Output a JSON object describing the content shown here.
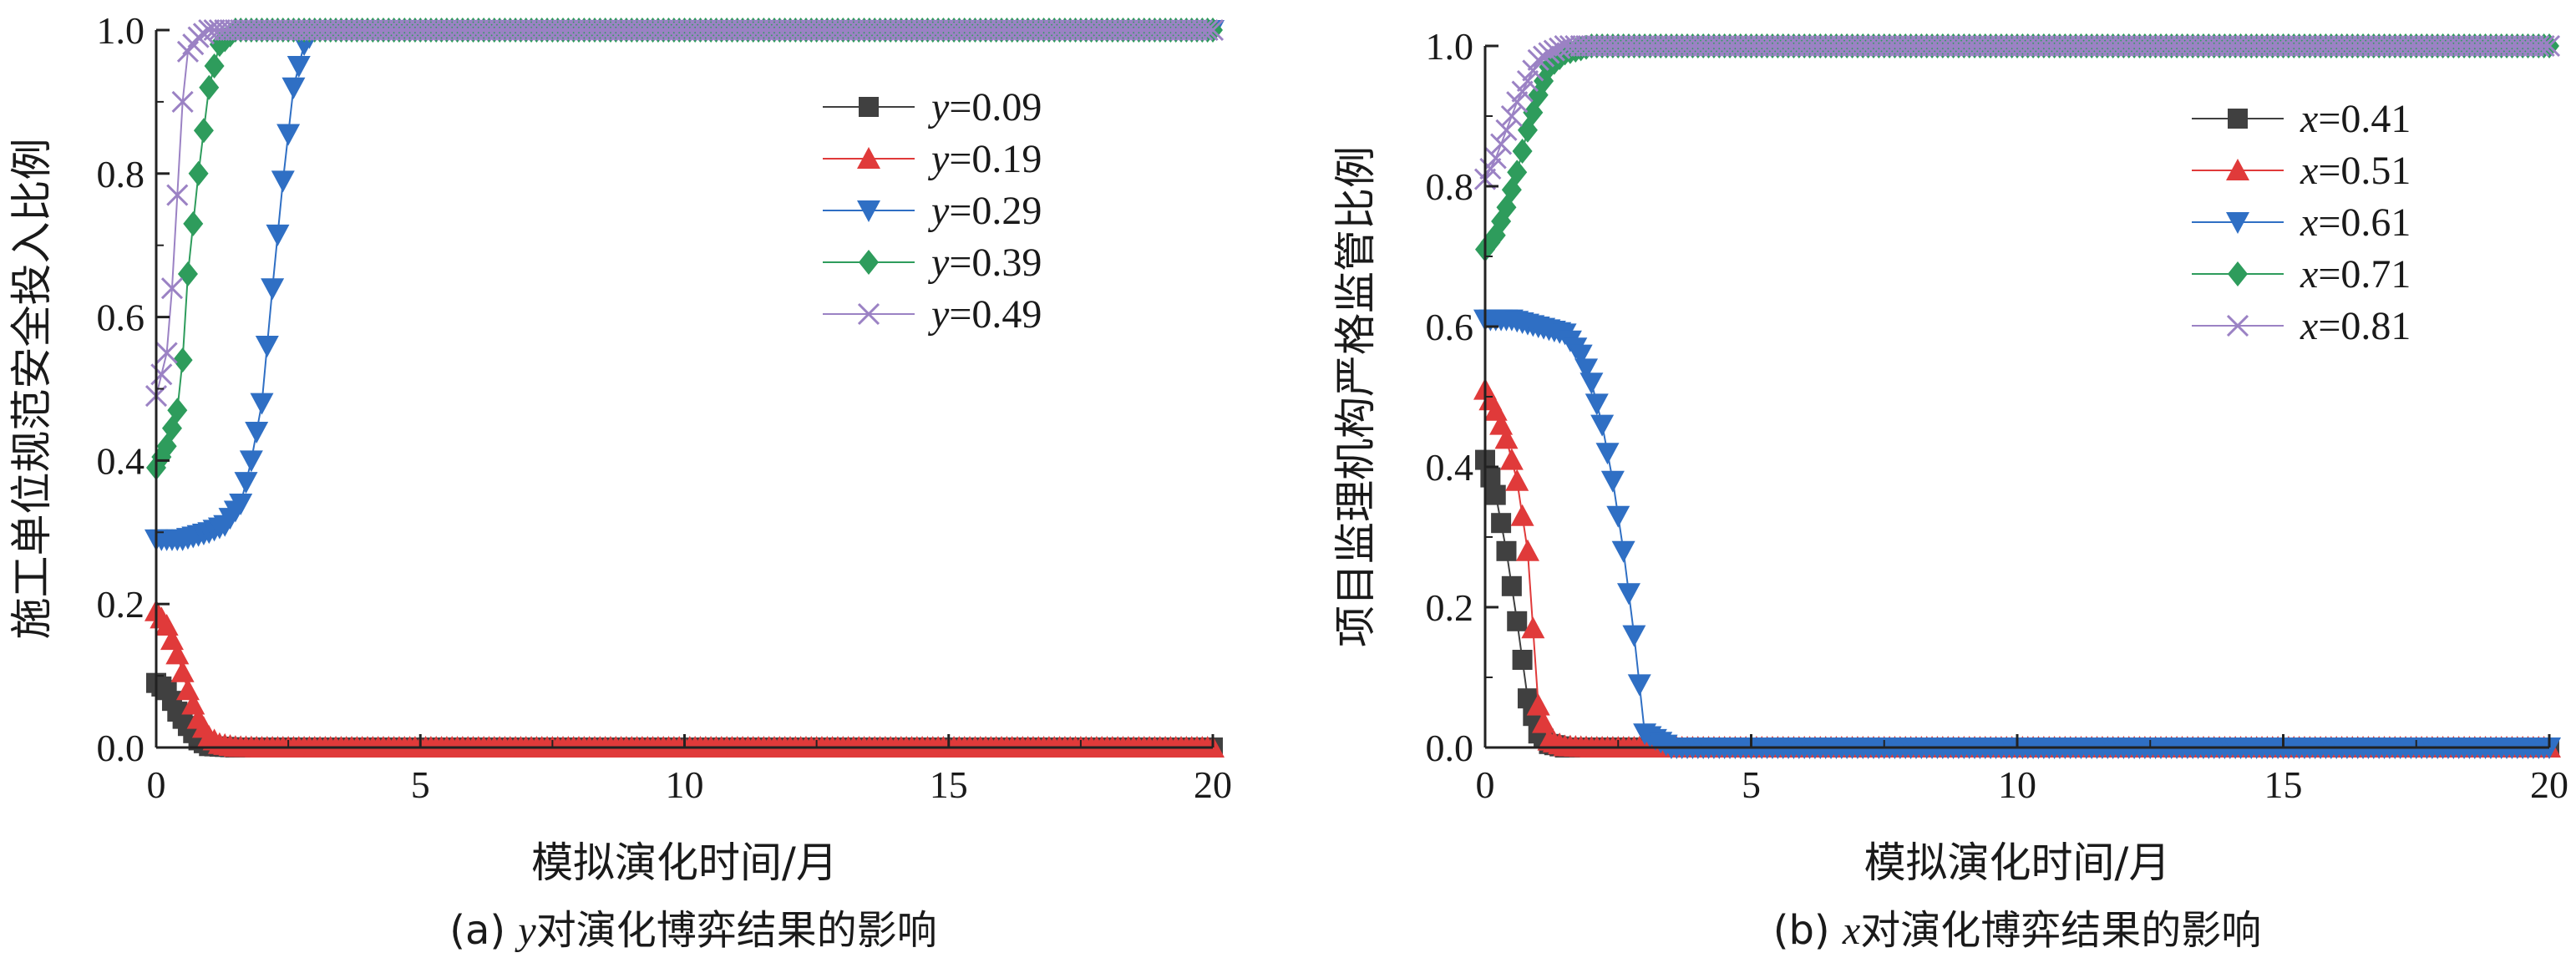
{
  "chart_data": [
    {
      "type": "line",
      "title": "",
      "caption": {
        "prefix": "(a) ",
        "var": "y",
        "suffix": "对演化博弈结果的影响"
      },
      "xlabel": "模拟演化时间/月",
      "ylabel": "施工单位规范安全投入比例",
      "xlim": [
        0,
        20
      ],
      "ylim": [
        0,
        1
      ],
      "xticks": [
        "0",
        "5",
        "10",
        "15",
        "20"
      ],
      "yticks": [
        "0.0",
        "0.2",
        "0.4",
        "0.6",
        "0.8",
        "1.0"
      ],
      "grid": false,
      "legend_position": "top-right",
      "series": [
        {
          "name": "y=0.09",
          "var": "y",
          "val": "=0.09",
          "color": "#404040",
          "marker": "square",
          "x": [
            0,
            0.2,
            0.4,
            0.6,
            0.8,
            1.0,
            1.5,
            2,
            3,
            5,
            10,
            15,
            20
          ],
          "y": [
            0.09,
            0.08,
            0.05,
            0.03,
            0.01,
            0.002,
            0,
            0,
            0,
            0,
            0,
            0,
            0
          ]
        },
        {
          "name": "y=0.19",
          "var": "y",
          "val": "=0.19",
          "color": "#e03a3a",
          "marker": "triangle-up",
          "x": [
            0,
            0.2,
            0.4,
            0.6,
            0.8,
            1.0,
            1.2,
            1.5,
            2,
            3,
            5,
            10,
            15,
            20
          ],
          "y": [
            0.19,
            0.17,
            0.13,
            0.08,
            0.04,
            0.015,
            0.005,
            0.001,
            0,
            0,
            0,
            0,
            0,
            0
          ]
        },
        {
          "name": "y=0.29",
          "var": "y",
          "val": "=0.29",
          "color": "#2f6fc4",
          "marker": "triangle-down",
          "x": [
            0,
            0.5,
            1.0,
            1.3,
            1.6,
            1.8,
            2.0,
            2.2,
            2.4,
            2.6,
            2.8,
            3.0,
            3.5,
            5,
            10,
            15,
            20
          ],
          "y": [
            0.29,
            0.29,
            0.3,
            0.31,
            0.34,
            0.4,
            0.48,
            0.64,
            0.79,
            0.92,
            0.98,
            1.0,
            1.0,
            1.0,
            1.0,
            1.0,
            1.0
          ]
        },
        {
          "name": "y=0.39",
          "var": "y",
          "val": "=0.39",
          "color": "#2e9c5c",
          "marker": "diamond",
          "x": [
            0,
            0.2,
            0.4,
            0.5,
            0.6,
            0.8,
            1.0,
            1.2,
            1.5,
            2,
            3,
            5,
            10,
            15,
            20
          ],
          "y": [
            0.39,
            0.42,
            0.47,
            0.54,
            0.66,
            0.8,
            0.92,
            0.98,
            1.0,
            1.0,
            1.0,
            1.0,
            1.0,
            1.0,
            1.0
          ]
        },
        {
          "name": "y=0.49",
          "var": "y",
          "val": "=0.49",
          "color": "#9b82c4",
          "marker": "cross",
          "x": [
            0,
            0.2,
            0.3,
            0.4,
            0.5,
            0.6,
            0.8,
            1.0,
            1.2,
            1.5,
            2,
            3,
            5,
            10,
            15,
            20
          ],
          "y": [
            0.49,
            0.55,
            0.64,
            0.77,
            0.9,
            0.97,
            0.99,
            1.0,
            1.0,
            1.0,
            1.0,
            1.0,
            1.0,
            1.0,
            1.0,
            1.0
          ]
        }
      ]
    },
    {
      "type": "line",
      "title": "",
      "caption": {
        "prefix": "(b) ",
        "var": "x",
        "suffix": "对演化博弈结果的影响"
      },
      "xlabel": "模拟演化时间/月",
      "ylabel": "项目监理机构严格监管比例",
      "xlim": [
        0,
        20
      ],
      "ylim": [
        0,
        1
      ],
      "xticks": [
        "0",
        "5",
        "10",
        "15",
        "20"
      ],
      "yticks": [
        "0.0",
        "0.2",
        "0.4",
        "0.6",
        "0.8",
        "1.0"
      ],
      "grid": false,
      "legend_position": "top-right",
      "series": [
        {
          "name": "x=0.41",
          "var": "x",
          "val": "=0.41",
          "color": "#404040",
          "marker": "square",
          "x": [
            0,
            0.2,
            0.4,
            0.6,
            0.8,
            1.0,
            1.2,
            1.5,
            2,
            3,
            5,
            10,
            15,
            20
          ],
          "y": [
            0.41,
            0.36,
            0.28,
            0.18,
            0.07,
            0.02,
            0.005,
            0,
            0,
            0,
            0,
            0,
            0,
            0
          ]
        },
        {
          "name": "x=0.51",
          "var": "x",
          "val": "=0.51",
          "color": "#e03a3a",
          "marker": "triangle-up",
          "x": [
            0,
            0.2,
            0.4,
            0.6,
            0.8,
            0.9,
            1.0,
            1.2,
            1.5,
            2,
            3,
            5,
            10,
            15,
            20
          ],
          "y": [
            0.51,
            0.48,
            0.44,
            0.38,
            0.28,
            0.17,
            0.06,
            0.01,
            0.002,
            0,
            0,
            0,
            0,
            0,
            0
          ]
        },
        {
          "name": "x=0.61",
          "var": "x",
          "val": "=0.61",
          "color": "#2f6fc4",
          "marker": "triangle-down",
          "x": [
            0,
            0.5,
            1.0,
            1.5,
            1.8,
            2.0,
            2.2,
            2.4,
            2.6,
            2.8,
            3.0,
            3.5,
            5,
            10,
            15,
            20
          ],
          "y": [
            0.61,
            0.61,
            0.6,
            0.59,
            0.56,
            0.52,
            0.46,
            0.38,
            0.28,
            0.16,
            0.02,
            0,
            0,
            0,
            0,
            0
          ]
        },
        {
          "name": "x=0.71",
          "var": "x",
          "val": "=0.71",
          "color": "#2e9c5c",
          "marker": "diamond",
          "x": [
            0,
            0.2,
            0.4,
            0.6,
            0.8,
            1.0,
            1.2,
            1.5,
            2,
            3,
            5,
            10,
            15,
            20
          ],
          "y": [
            0.71,
            0.73,
            0.77,
            0.82,
            0.88,
            0.93,
            0.97,
            0.99,
            1.0,
            1.0,
            1.0,
            1.0,
            1.0,
            1.0
          ]
        },
        {
          "name": "x=0.81",
          "var": "x",
          "val": "=0.81",
          "color": "#9b82c4",
          "marker": "cross",
          "x": [
            0,
            0.2,
            0.4,
            0.6,
            0.8,
            1.0,
            1.2,
            1.5,
            2,
            3,
            5,
            10,
            15,
            20
          ],
          "y": [
            0.81,
            0.84,
            0.88,
            0.92,
            0.95,
            0.98,
            0.99,
            1.0,
            1.0,
            1.0,
            1.0,
            1.0,
            1.0,
            1.0
          ]
        }
      ]
    }
  ]
}
